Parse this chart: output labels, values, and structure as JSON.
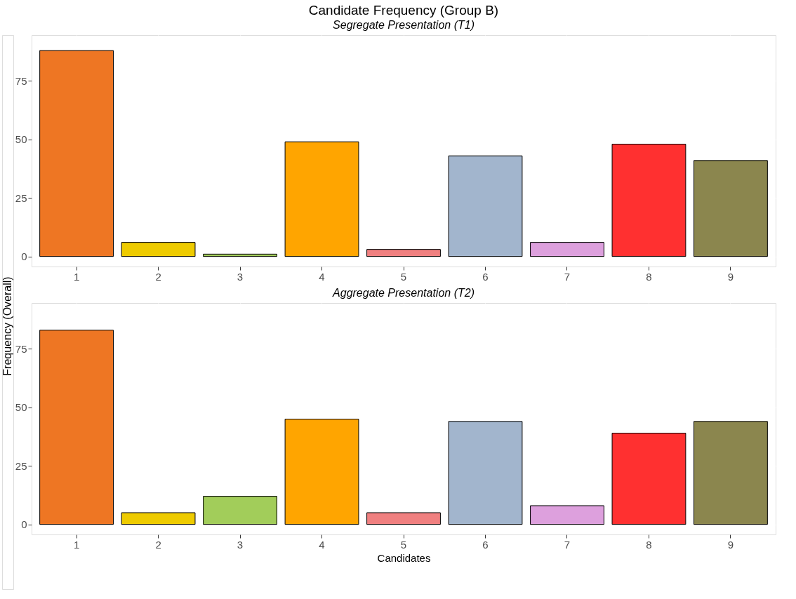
{
  "chart_data": [
    {
      "type": "bar",
      "title": "Candidate Frequency (Group B)",
      "subtitle": "Segregate Presentation (T1)",
      "ylabel": "Frequency (Overall)",
      "categories": [
        "1",
        "2",
        "3",
        "4",
        "5",
        "6",
        "7",
        "8",
        "9"
      ],
      "values": [
        88,
        6,
        1,
        49,
        3,
        43,
        6,
        48,
        41
      ],
      "colors": [
        "#ee7623",
        "#eecb00",
        "#a2cd5a",
        "#ffa500",
        "#f08080",
        "#a2b5cd",
        "#dda0dd",
        "#ff3030",
        "#8b864e"
      ],
      "ylim": [
        -4.3,
        94.6
      ],
      "yticks": [
        0,
        25,
        50,
        75
      ],
      "grid": true,
      "legend": false
    },
    {
      "type": "bar",
      "title": "Aggregate Presentation (T2)",
      "xlabel": "Candidates",
      "categories": [
        "1",
        "2",
        "3",
        "4",
        "5",
        "6",
        "7",
        "8",
        "9"
      ],
      "values": [
        83,
        5,
        12,
        45,
        5,
        44,
        8,
        39,
        44
      ],
      "colors": [
        "#ee7623",
        "#eecb00",
        "#a2cd5a",
        "#ffa500",
        "#f08080",
        "#a2b5cd",
        "#dda0dd",
        "#ff3030",
        "#8b864e"
      ],
      "ylim": [
        -4.3,
        94.6
      ],
      "yticks": [
        0,
        25,
        50,
        75
      ],
      "grid": true,
      "legend": false
    }
  ]
}
